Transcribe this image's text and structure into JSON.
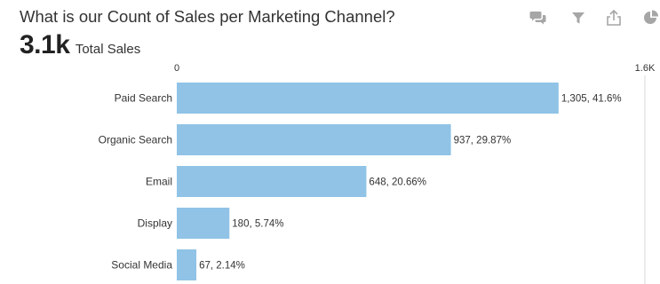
{
  "header": {
    "title": "What is our Count of Sales per Marketing Channel?",
    "kpi_value": "3.1k",
    "kpi_label": "Total Sales"
  },
  "toolbar": {
    "icons": [
      "comments-icon",
      "filter-icon",
      "share-icon",
      "pie-chart-icon"
    ],
    "icon_color": "#a6a6a6"
  },
  "chart_data": {
    "type": "bar",
    "orientation": "horizontal",
    "categories": [
      "Paid Search",
      "Organic Search",
      "Email",
      "Display",
      "Social Media"
    ],
    "values": [
      1305,
      937,
      648,
      180,
      67
    ],
    "data_labels": [
      "1,305, 41.6%",
      "937, 29.87%",
      "648, 20.66%",
      "180, 5.74%",
      "67, 2.14%"
    ],
    "x_ticks": [
      "0",
      "1.6K"
    ],
    "xlim": [
      0,
      1600
    ],
    "bar_color": "#90c3e6",
    "grid": false
  }
}
